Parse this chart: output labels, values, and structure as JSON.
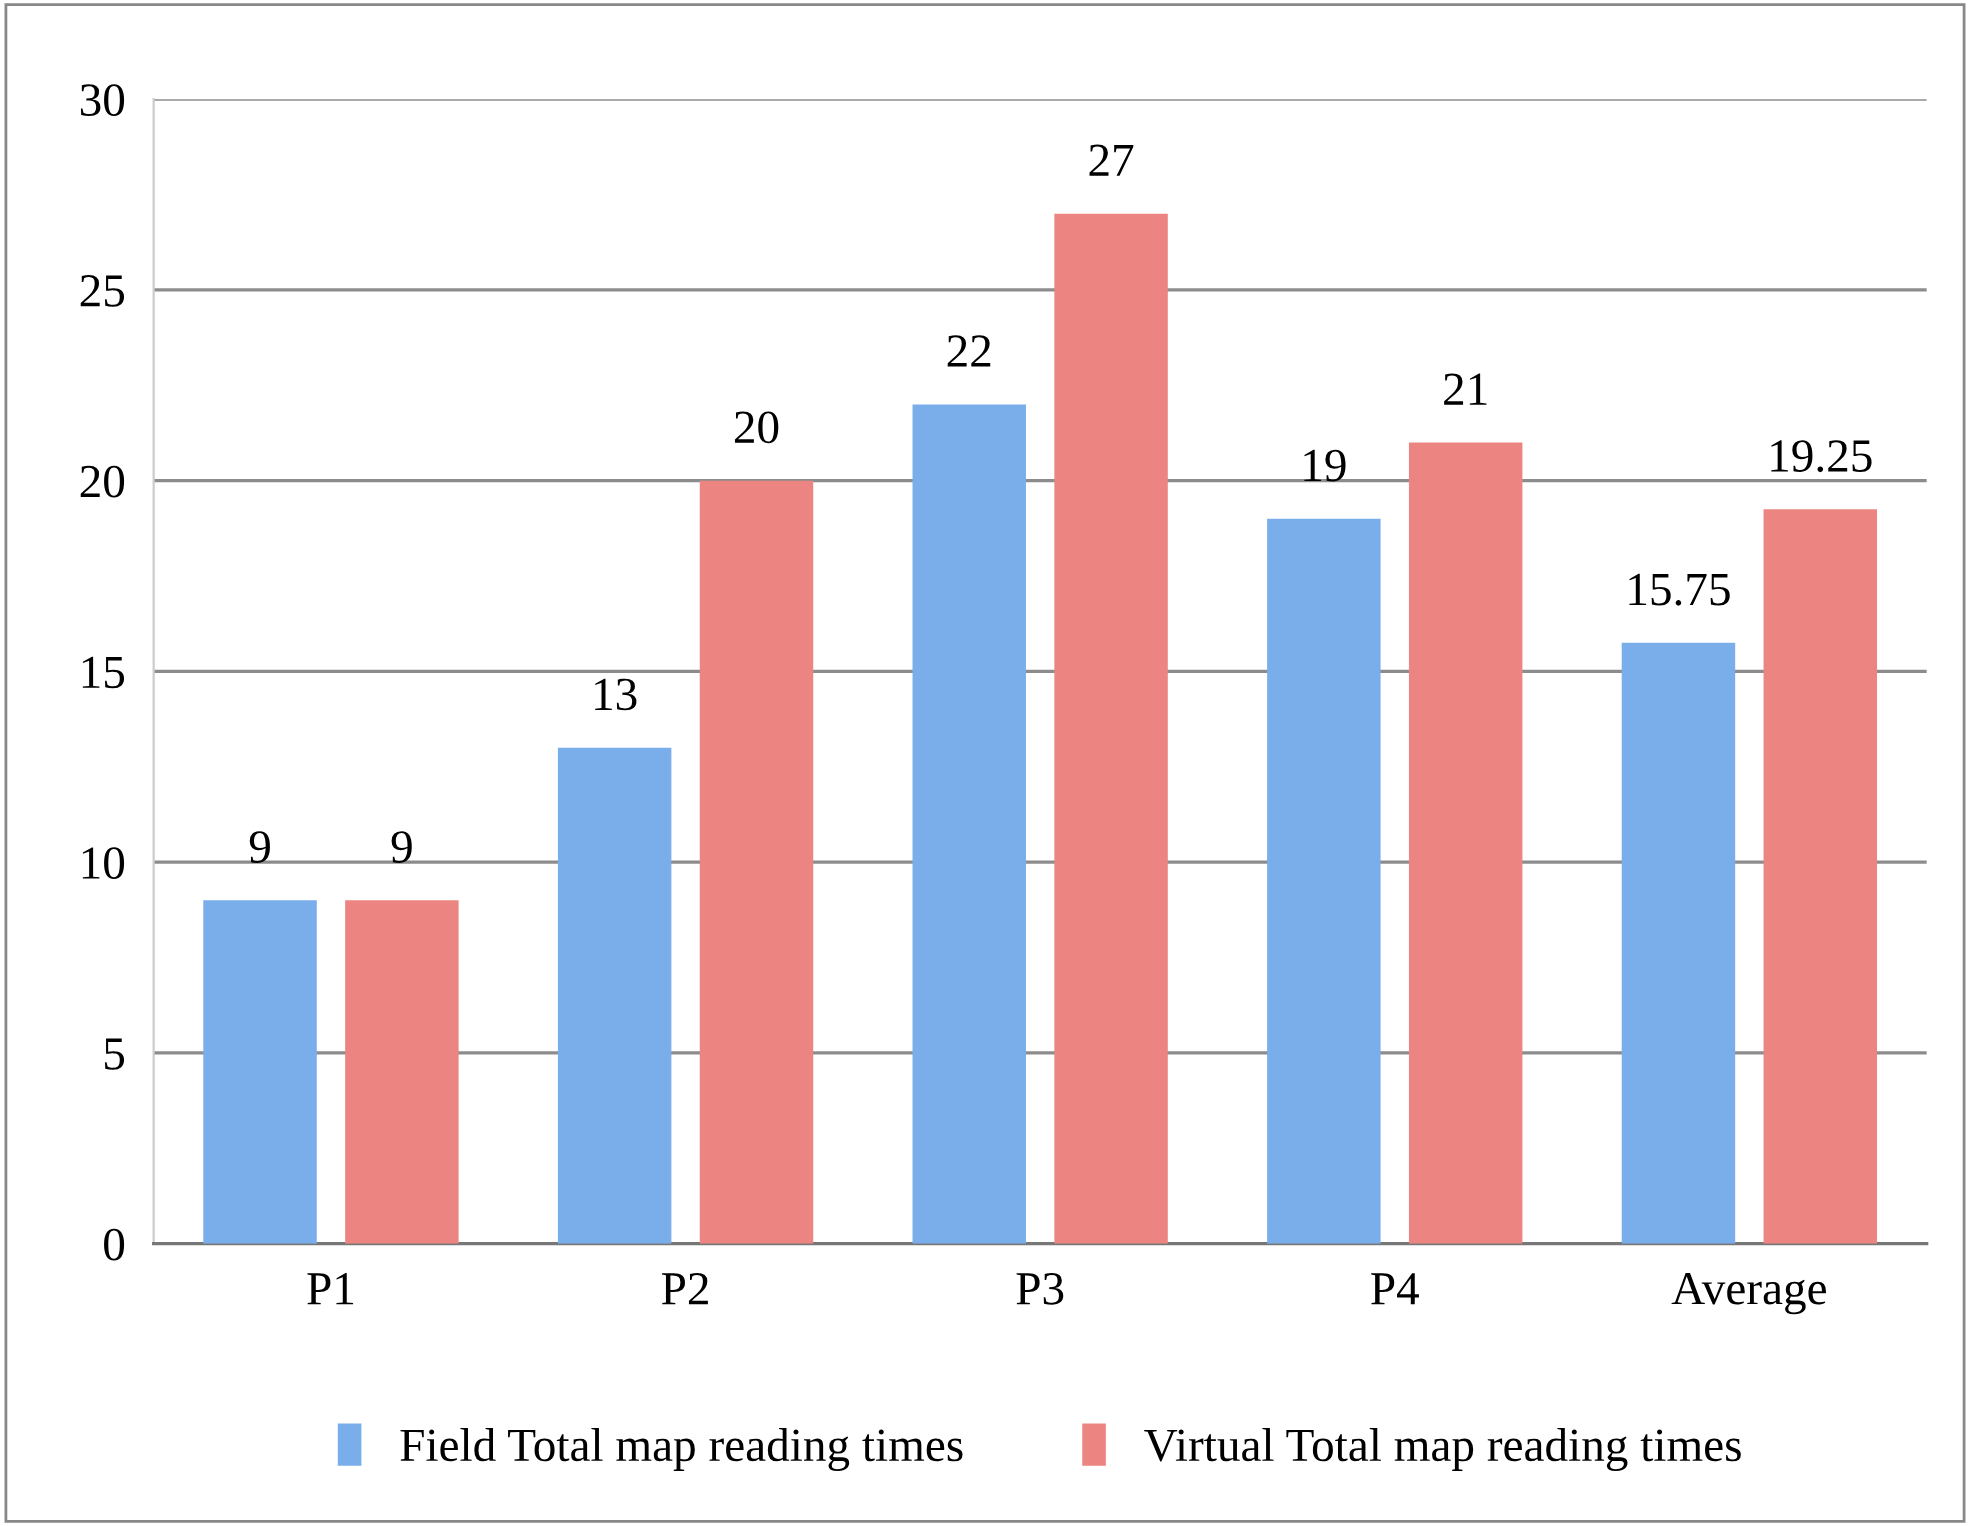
{
  "chart_data": {
    "type": "bar",
    "categories": [
      "P1",
      "P2",
      "P3",
      "P4",
      "Average"
    ],
    "series": [
      {
        "name": "Field Total map reading times",
        "color": "#7aaeea",
        "values": [
          9,
          13,
          22,
          19,
          15.75
        ]
      },
      {
        "name": "Virtual Total map reading times",
        "color": "#ec8581",
        "values": [
          9,
          20,
          27,
          21,
          19.25
        ]
      }
    ],
    "ylim": [
      0,
      30
    ],
    "yticks": [
      0,
      5,
      10,
      15,
      20,
      25,
      30
    ],
    "grid": "y",
    "legend": "bottom",
    "data_labels": true
  }
}
